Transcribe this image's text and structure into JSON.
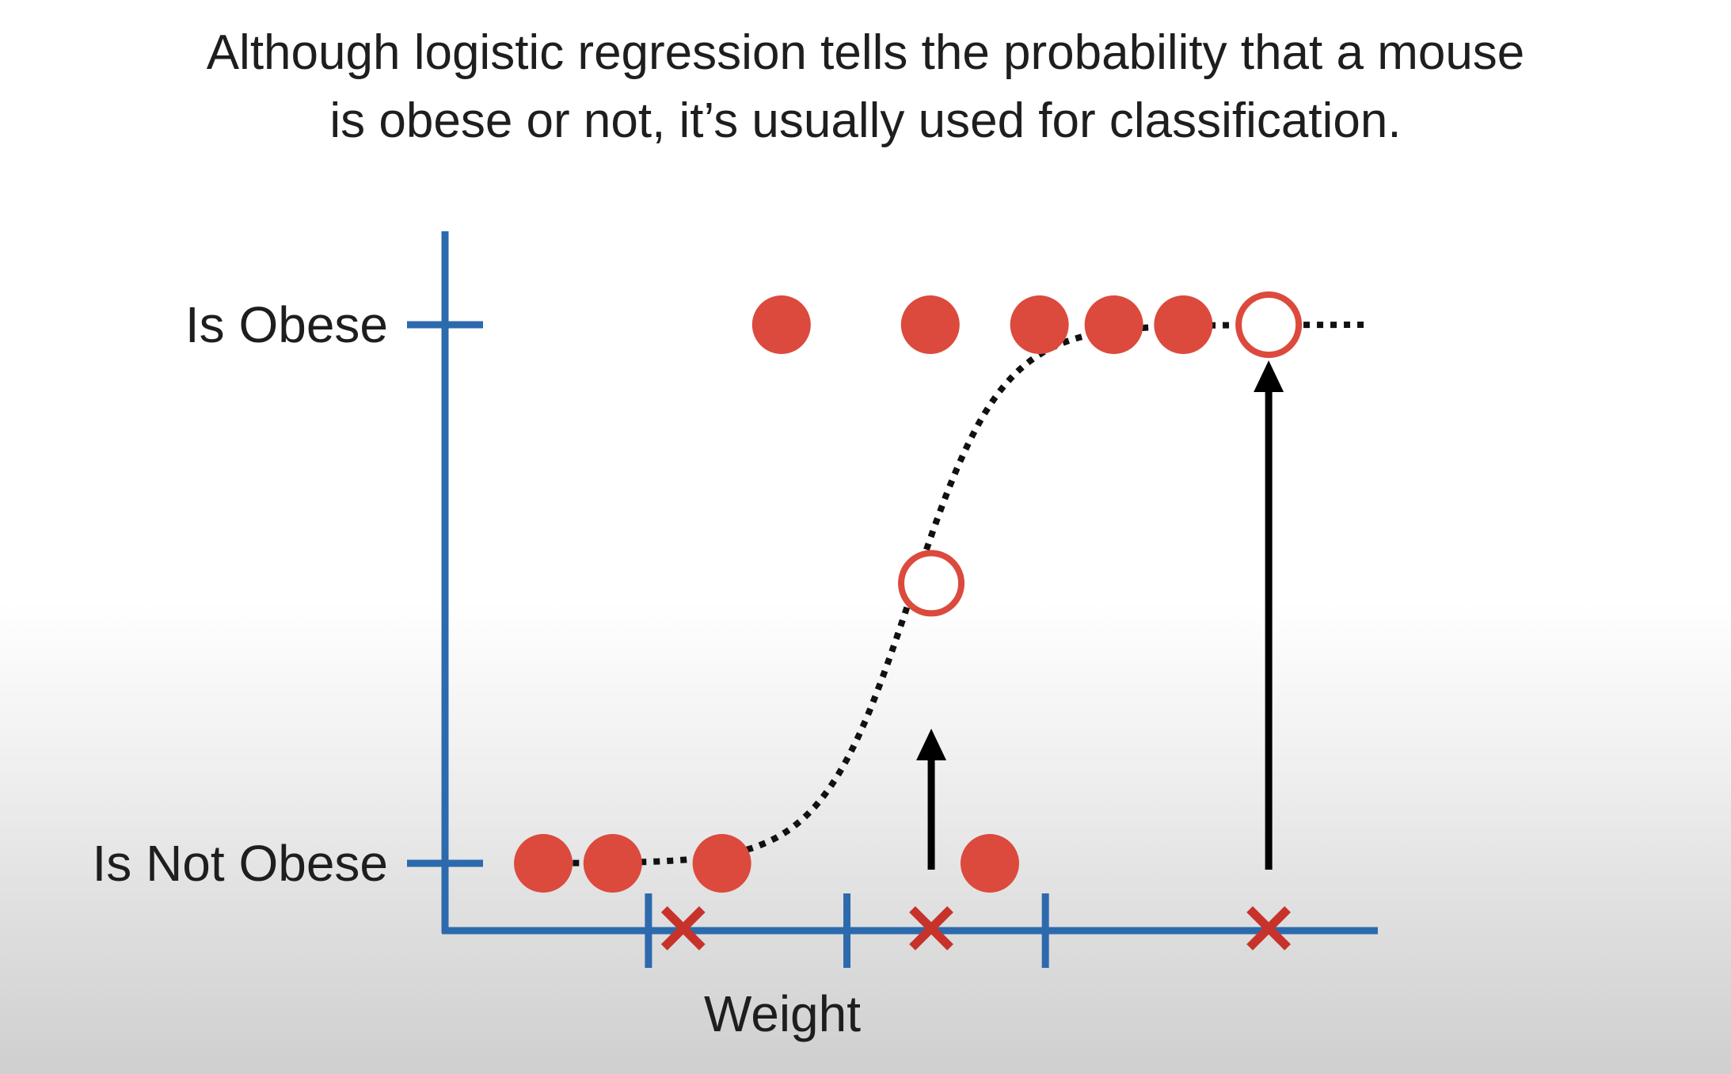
{
  "caption": {
    "line1": "Although logistic regression tells the probability that a mouse",
    "line2": "is obese or not, it’s usually used for classification."
  },
  "chart_data": {
    "type": "scatter",
    "title": "",
    "xlabel": "Weight",
    "ylabel": "",
    "y_categories": [
      {
        "label": "Is Not Obese",
        "value": 0
      },
      {
        "label": "Is Obese",
        "value": 1
      }
    ],
    "xlim": [
      0,
      9.4
    ],
    "ylim": [
      0,
      1
    ],
    "x_ticks": [
      2.05,
      4.05,
      6.05
    ],
    "points_not_obese": [
      0.99,
      1.69,
      2.79,
      5.49
    ],
    "points_obese": [
      3.39,
      4.89,
      5.99,
      6.74,
      7.44
    ],
    "curve": {
      "midpoint": 4.7,
      "steepness": 2.2,
      "x_start": 0.88,
      "x_end": 9.3
    },
    "predictions": [
      {
        "x": 2.4,
        "probability": 0.0
      },
      {
        "x": 4.9,
        "probability": 0.52
      },
      {
        "x": 8.3,
        "probability": 1.0
      }
    ],
    "colors": {
      "axis": "#2c6aad",
      "point": "#db4a3d",
      "marker": "#c7332b",
      "curve": "#111111",
      "arrow": "#000000"
    }
  }
}
